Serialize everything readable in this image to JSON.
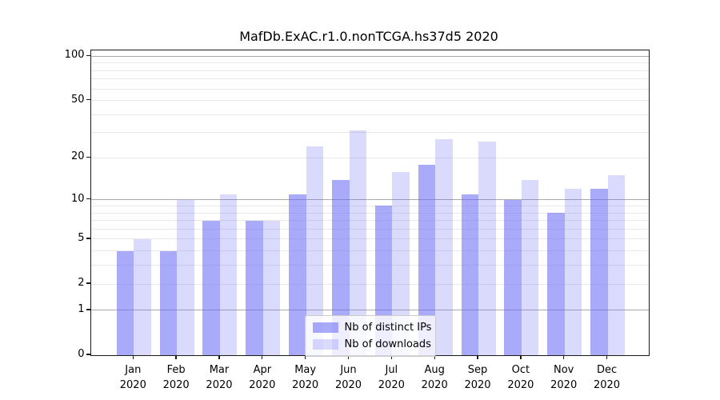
{
  "chart_data": {
    "type": "bar",
    "title": "MafDb.ExAC.r1.0.nonTCGA.hs37d5 2020",
    "xlabel": "",
    "ylabel": "",
    "year": "2020",
    "categories": [
      "Jan",
      "Feb",
      "Mar",
      "Apr",
      "May",
      "Jun",
      "Jul",
      "Aug",
      "Sep",
      "Oct",
      "Nov",
      "Dec"
    ],
    "series": [
      {
        "name": "Nb of distinct IPs",
        "color": "rgba(100,100,245,0.55)",
        "values": [
          4,
          4,
          7,
          7,
          11,
          14,
          9,
          18,
          11,
          10,
          8,
          12
        ]
      },
      {
        "name": "Nb of downloads",
        "color": "rgba(100,100,245,0.24)",
        "values": [
          5,
          10,
          11,
          7,
          24,
          31,
          16,
          27,
          26,
          14,
          12,
          15
        ]
      }
    ],
    "yscale": "log1p",
    "ylim": [
      0,
      108
    ],
    "yticks": [
      0,
      1,
      2,
      5,
      10,
      20,
      50,
      100
    ],
    "grid": {
      "major_lines_at": [
        1,
        10,
        100
      ],
      "minor_lines_at": [
        2,
        3,
        4,
        5,
        6,
        7,
        8,
        9,
        20,
        30,
        40,
        50,
        60,
        70,
        80,
        90
      ],
      "major_color": "#ababab",
      "minor_color": "#e9e9e9"
    },
    "legend_position": "lower center",
    "colors": {
      "bar_base": "#6464f5",
      "axis": "#1a1a1a",
      "background": "#ffffff"
    }
  }
}
